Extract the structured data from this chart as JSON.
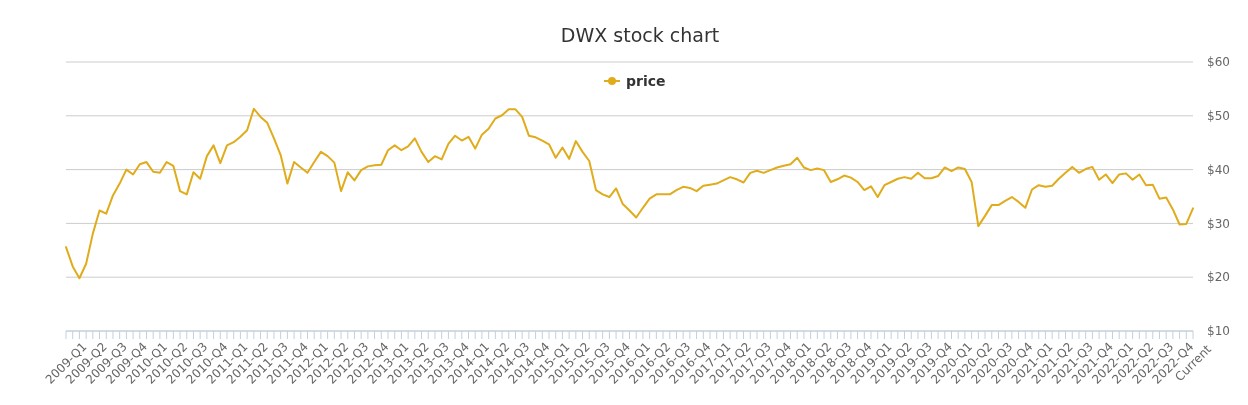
{
  "chart_data": {
    "type": "line",
    "title": "DWX stock chart",
    "categories": [
      "2009-Q1",
      null,
      null,
      "2009-Q2",
      null,
      null,
      "2009-Q3",
      null,
      null,
      "2009-Q4",
      null,
      null,
      "2010-Q1",
      null,
      null,
      "2010-Q2",
      null,
      null,
      "2010-Q3",
      null,
      null,
      "2010-Q4",
      null,
      null,
      "2011-Q1",
      null,
      null,
      "2011-Q2",
      null,
      null,
      "2011-Q3",
      null,
      null,
      "2011-Q4",
      null,
      null,
      "2012-Q1",
      null,
      null,
      "2012-Q2",
      null,
      null,
      "2012-Q3",
      null,
      null,
      "2012-Q4",
      null,
      null,
      "2013-Q1",
      null,
      null,
      "2013-Q2",
      null,
      null,
      "2013-Q3",
      null,
      null,
      "2013-Q4",
      null,
      null,
      "2014-Q1",
      null,
      null,
      "2014-Q2",
      null,
      null,
      "2014-Q3",
      null,
      null,
      "2014-Q4",
      null,
      null,
      "2015-Q1",
      null,
      null,
      "2015-Q2",
      null,
      null,
      "2015-Q3",
      null,
      null,
      "2015-Q4",
      null,
      null,
      "2016-Q1",
      null,
      null,
      "2016-Q2",
      null,
      null,
      "2016-Q3",
      null,
      null,
      "2016-Q4",
      null,
      null,
      "2017-Q1",
      null,
      null,
      "2017-Q2",
      null,
      null,
      "2017-Q3",
      null,
      null,
      "2017-Q4",
      null,
      null,
      "2018-Q1",
      null,
      null,
      "2018-Q2",
      null,
      null,
      "2018-Q3",
      null,
      null,
      "2018-Q4",
      null,
      null,
      "2019-Q1",
      null,
      null,
      "2019-Q2",
      null,
      null,
      "2019-Q3",
      null,
      null,
      "2019-Q4",
      null,
      null,
      "2020-Q1",
      null,
      null,
      "2020-Q2",
      null,
      null,
      "2020-Q3",
      null,
      null,
      "2020-Q4",
      null,
      null,
      "2021-Q1",
      null,
      null,
      "2021-Q2",
      null,
      null,
      "2021-Q3",
      null,
      null,
      "2021-Q4",
      null,
      null,
      "2022-Q1",
      null,
      null,
      "2022-Q2",
      null,
      null,
      "2022-Q3",
      null,
      null,
      "2022-Q4",
      null,
      null,
      "Current"
    ],
    "series": [
      {
        "name": "price",
        "color": "#e0ac1c",
        "values": [
          25.6,
          22.0,
          19.8,
          22.5,
          28.1,
          32.4,
          31.8,
          35.2,
          37.4,
          40.0,
          39.1,
          41.0,
          41.4,
          39.6,
          39.4,
          41.4,
          40.7,
          36.0,
          35.4,
          39.5,
          38.3,
          42.5,
          44.5,
          41.2,
          44.5,
          45.1,
          46.1,
          47.3,
          51.3,
          49.8,
          48.7,
          45.8,
          42.7,
          37.4,
          41.4,
          40.4,
          39.4,
          41.4,
          43.3,
          42.5,
          41.3,
          36.0,
          39.5,
          38.0,
          39.9,
          40.6,
          40.8,
          40.9,
          43.6,
          44.5,
          43.6,
          44.3,
          45.8,
          43.3,
          41.4,
          42.5,
          41.9,
          44.8,
          46.3,
          45.4,
          46.1,
          43.9,
          46.5,
          47.6,
          49.5,
          50.1,
          51.2,
          51.2,
          49.8,
          46.3,
          46.0,
          45.4,
          44.7,
          42.2,
          44.1,
          42.0,
          45.3,
          43.3,
          41.6,
          36.2,
          35.4,
          34.9,
          36.5,
          33.6,
          32.4,
          31.1,
          32.9,
          34.6,
          35.4,
          35.4,
          35.4,
          36.2,
          36.8,
          36.6,
          36.0,
          37.0,
          37.2,
          37.4,
          38.0,
          38.6,
          38.2,
          37.6,
          39.4,
          39.8,
          39.4,
          39.9,
          40.4,
          40.7,
          41.0,
          42.2,
          40.4,
          39.9,
          40.2,
          39.9,
          37.7,
          38.2,
          38.9,
          38.5,
          37.7,
          36.2,
          36.9,
          34.9,
          37.1,
          37.7,
          38.3,
          38.6,
          38.3,
          39.4,
          38.4,
          38.4,
          38.8,
          40.4,
          39.7,
          40.4,
          40.1,
          37.7,
          29.5,
          31.4,
          33.4,
          33.4,
          34.2,
          34.9,
          34.0,
          32.9,
          36.3,
          37.1,
          36.8,
          37.0,
          38.3,
          39.4,
          40.5,
          39.4,
          40.1,
          40.5,
          38.1,
          39.1,
          37.5,
          39.1,
          39.3,
          38.1,
          39.1,
          37.1,
          37.2,
          34.6,
          34.8,
          32.6,
          29.8,
          29.9,
          32.8
        ]
      }
    ],
    "ylim": [
      10,
      60
    ],
    "yticks": [
      {
        "value": 10,
        "label": "$10"
      },
      {
        "value": 20,
        "label": "$20"
      },
      {
        "value": 30,
        "label": "$30"
      },
      {
        "value": 40,
        "label": "$40"
      },
      {
        "value": 50,
        "label": "$50"
      },
      {
        "value": 60,
        "label": "$60"
      }
    ],
    "grid": "y",
    "legend": "top"
  }
}
